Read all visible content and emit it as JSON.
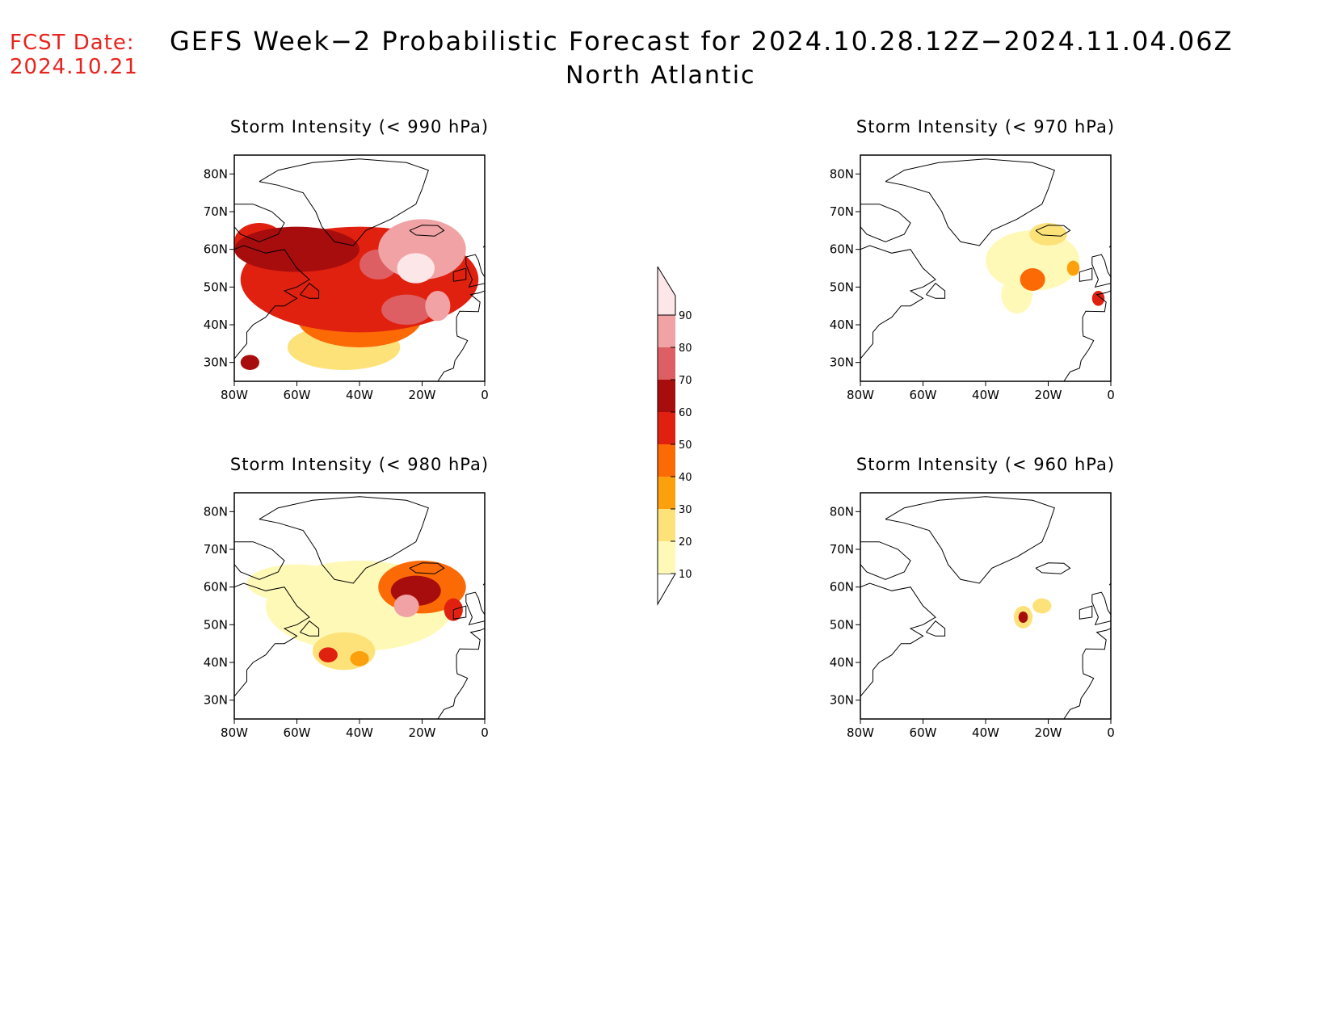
{
  "fcst": {
    "label": "FCST Date:",
    "date": "2024.10.21"
  },
  "title": "GEFS Week−2 Probabilistic Forecast for 2024.10.28.12Z−2024.11.04.06Z",
  "subtitle": "North Atlantic",
  "lon_ticks": [
    "80W",
    "60W",
    "40W",
    "20W",
    "0"
  ],
  "lat_ticks": [
    "80N",
    "70N",
    "60N",
    "50N",
    "40N",
    "30N"
  ],
  "extent": {
    "lon": [
      -80,
      0
    ],
    "lat": [
      25,
      85
    ]
  },
  "colorbar": {
    "levels": [
      10,
      20,
      30,
      40,
      50,
      60,
      70,
      80,
      90
    ],
    "colors": [
      "#fff9b8",
      "#fde27a",
      "#fca10d",
      "#fb6a05",
      "#e0210f",
      "#a70d0d",
      "#de5f63",
      "#f0a2a4",
      "#fde6e8"
    ]
  },
  "panels": [
    {
      "id": "p990",
      "title": "Storm Intensity (< 990 hPa)",
      "blobs": [
        {
          "lon": -40,
          "lat": 52,
          "rx": 38,
          "ry": 14,
          "level": 50
        },
        {
          "lon": -60,
          "lat": 60,
          "rx": 20,
          "ry": 6,
          "level": 60
        },
        {
          "lon": -72,
          "lat": 62,
          "rx": 8,
          "ry": 5,
          "level": 50
        },
        {
          "lon": -20,
          "lat": 60,
          "rx": 14,
          "ry": 8,
          "level": 80
        },
        {
          "lon": -22,
          "lat": 55,
          "rx": 6,
          "ry": 4,
          "level": 90
        },
        {
          "lon": -40,
          "lat": 42,
          "rx": 20,
          "ry": 8,
          "level": 40
        },
        {
          "lon": -45,
          "lat": 34,
          "rx": 18,
          "ry": 6,
          "level": 20
        },
        {
          "lon": -25,
          "lat": 44,
          "rx": 8,
          "ry": 4,
          "level": 70
        },
        {
          "lon": -34,
          "lat": 56,
          "rx": 6,
          "ry": 4,
          "level": 70
        },
        {
          "lon": -15,
          "lat": 45,
          "rx": 4,
          "ry": 4,
          "level": 80
        },
        {
          "lon": -75,
          "lat": 30,
          "rx": 3,
          "ry": 2,
          "level": 60
        }
      ]
    },
    {
      "id": "p970",
      "title": "Storm Intensity (< 970 hPa)",
      "blobs": [
        {
          "lon": -25,
          "lat": 57,
          "rx": 15,
          "ry": 8,
          "level": 10
        },
        {
          "lon": -30,
          "lat": 48,
          "rx": 5,
          "ry": 5,
          "level": 10
        },
        {
          "lon": -25,
          "lat": 52,
          "rx": 4,
          "ry": 3,
          "level": 40
        },
        {
          "lon": -20,
          "lat": 64,
          "rx": 6,
          "ry": 3,
          "level": 20
        },
        {
          "lon": -12,
          "lat": 55,
          "rx": 2,
          "ry": 2,
          "level": 30
        },
        {
          "lon": -4,
          "lat": 47,
          "rx": 2,
          "ry": 2,
          "level": 50
        }
      ]
    },
    {
      "id": "p980",
      "title": "Storm Intensity (< 980 hPa)",
      "blobs": [
        {
          "lon": -40,
          "lat": 55,
          "rx": 30,
          "ry": 12,
          "level": 10
        },
        {
          "lon": -20,
          "lat": 60,
          "rx": 14,
          "ry": 7,
          "level": 40
        },
        {
          "lon": -22,
          "lat": 59,
          "rx": 8,
          "ry": 4,
          "level": 60
        },
        {
          "lon": -25,
          "lat": 55,
          "rx": 4,
          "ry": 3,
          "level": 80
        },
        {
          "lon": -60,
          "lat": 61,
          "rx": 16,
          "ry": 5,
          "level": 10
        },
        {
          "lon": -45,
          "lat": 43,
          "rx": 10,
          "ry": 5,
          "level": 20
        },
        {
          "lon": -50,
          "lat": 42,
          "rx": 3,
          "ry": 2,
          "level": 50
        },
        {
          "lon": -10,
          "lat": 54,
          "rx": 3,
          "ry": 3,
          "level": 50
        },
        {
          "lon": -40,
          "lat": 41,
          "rx": 3,
          "ry": 2,
          "level": 30
        }
      ]
    },
    {
      "id": "p960",
      "title": "Storm Intensity (< 960 hPa)",
      "blobs": [
        {
          "lon": -28,
          "lat": 52,
          "rx": 3,
          "ry": 3,
          "level": 20
        },
        {
          "lon": -28,
          "lat": 52,
          "rx": 1.5,
          "ry": 1.5,
          "level": 60
        },
        {
          "lon": -22,
          "lat": 55,
          "rx": 3,
          "ry": 2,
          "level": 20
        }
      ]
    }
  ]
}
